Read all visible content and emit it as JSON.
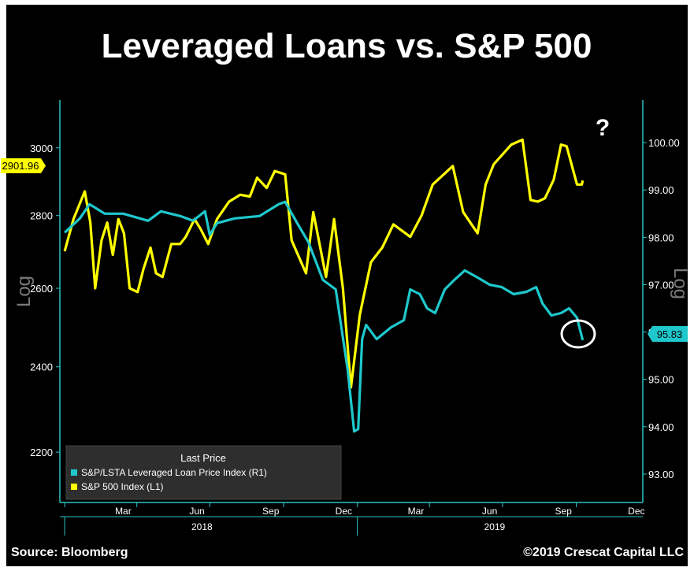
{
  "chart_data": {
    "type": "line",
    "title": "Leveraged Loans vs. S&P 500",
    "source": "Source: Bloomberg",
    "copyright": "©2019 Crescat Capital LLC",
    "left_axis_label": "Log",
    "right_axis_label": "Log",
    "left_ticks": [
      "2200",
      "2400",
      "2600",
      "2800",
      "3000"
    ],
    "right_ticks": [
      "93.00",
      "94.00",
      "95.00",
      "96.00",
      "97.00",
      "98.00",
      "99.00",
      "100.00"
    ],
    "x_month_ticks": [
      "Mar",
      "Jun",
      "Sep",
      "Dec",
      "Mar",
      "Jun",
      "Sep",
      "Dec"
    ],
    "x_year_ticks": [
      "2018",
      "2019"
    ],
    "left_ylim": [
      2090,
      3150
    ],
    "right_ylim": [
      92.4,
      100.9
    ],
    "legend": {
      "title": "Last Price",
      "entries": [
        "S&P/LSTA Leveraged Loan Price Index (R1)",
        "S&P 500 Index (L1)"
      ]
    },
    "last_values": {
      "left": "2901.96",
      "right": "95.83"
    },
    "annotation": "?",
    "colors": {
      "sp500": "#ffff00",
      "loan": "#1ec8cc",
      "background": "#000000",
      "axis": "#2ac4c4"
    },
    "series": [
      {
        "name": "S&P 500 Index (L1)",
        "axis": "left",
        "points": [
          [
            "2018-01-01",
            2700
          ],
          [
            "2018-01-12",
            2790
          ],
          [
            "2018-01-26",
            2870
          ],
          [
            "2018-02-02",
            2780
          ],
          [
            "2018-02-08",
            2600
          ],
          [
            "2018-02-16",
            2730
          ],
          [
            "2018-02-23",
            2780
          ],
          [
            "2018-03-02",
            2690
          ],
          [
            "2018-03-09",
            2790
          ],
          [
            "2018-03-16",
            2750
          ],
          [
            "2018-03-23",
            2600
          ],
          [
            "2018-04-02",
            2590
          ],
          [
            "2018-04-09",
            2650
          ],
          [
            "2018-04-18",
            2710
          ],
          [
            "2018-04-25",
            2640
          ],
          [
            "2018-05-03",
            2630
          ],
          [
            "2018-05-14",
            2720
          ],
          [
            "2018-05-25",
            2720
          ],
          [
            "2018-06-01",
            2740
          ],
          [
            "2018-06-12",
            2790
          ],
          [
            "2018-06-20",
            2760
          ],
          [
            "2018-06-29",
            2720
          ],
          [
            "2018-07-10",
            2790
          ],
          [
            "2018-07-25",
            2840
          ],
          [
            "2018-08-08",
            2860
          ],
          [
            "2018-08-20",
            2855
          ],
          [
            "2018-08-29",
            2910
          ],
          [
            "2018-09-10",
            2880
          ],
          [
            "2018-09-20",
            2930
          ],
          [
            "2018-10-03",
            2920
          ],
          [
            "2018-10-11",
            2730
          ],
          [
            "2018-10-29",
            2640
          ],
          [
            "2018-11-07",
            2810
          ],
          [
            "2018-11-23",
            2630
          ],
          [
            "2018-12-03",
            2790
          ],
          [
            "2018-12-14",
            2600
          ],
          [
            "2018-12-24",
            2350
          ],
          [
            "2019-01-04",
            2530
          ],
          [
            "2019-01-18",
            2670
          ],
          [
            "2019-02-01",
            2710
          ],
          [
            "2019-02-15",
            2775
          ],
          [
            "2019-03-08",
            2740
          ],
          [
            "2019-03-22",
            2800
          ],
          [
            "2019-04-05",
            2890
          ],
          [
            "2019-04-30",
            2945
          ],
          [
            "2019-05-13",
            2810
          ],
          [
            "2019-05-31",
            2750
          ],
          [
            "2019-06-10",
            2890
          ],
          [
            "2019-06-20",
            2950
          ],
          [
            "2019-07-12",
            3010
          ],
          [
            "2019-07-26",
            3025
          ],
          [
            "2019-08-05",
            2845
          ],
          [
            "2019-08-14",
            2840
          ],
          [
            "2019-08-23",
            2850
          ],
          [
            "2019-09-03",
            2905
          ],
          [
            "2019-09-12",
            3010
          ],
          [
            "2019-09-19",
            3005
          ],
          [
            "2019-10-02",
            2890
          ],
          [
            "2019-10-08",
            2890
          ],
          [
            "2019-10-09",
            2901.96
          ]
        ]
      },
      {
        "name": "S&P/LSTA Leveraged Loan Price Index (R1)",
        "axis": "right",
        "points": [
          [
            "2018-01-01",
            98.1
          ],
          [
            "2018-01-20",
            98.4
          ],
          [
            "2018-02-01",
            98.7
          ],
          [
            "2018-02-20",
            98.5
          ],
          [
            "2018-03-15",
            98.5
          ],
          [
            "2018-04-15",
            98.35
          ],
          [
            "2018-05-01",
            98.55
          ],
          [
            "2018-05-25",
            98.45
          ],
          [
            "2018-06-10",
            98.35
          ],
          [
            "2018-06-25",
            98.55
          ],
          [
            "2018-07-01",
            98.05
          ],
          [
            "2018-07-10",
            98.3
          ],
          [
            "2018-08-01",
            98.4
          ],
          [
            "2018-09-01",
            98.45
          ],
          [
            "2018-09-25",
            98.7
          ],
          [
            "2018-10-03",
            98.75
          ],
          [
            "2018-10-18",
            98.3
          ],
          [
            "2018-11-01",
            97.9
          ],
          [
            "2018-11-19",
            97.1
          ],
          [
            "2018-12-05",
            96.9
          ],
          [
            "2018-12-20",
            95.2
          ],
          [
            "2018-12-28",
            93.9
          ],
          [
            "2019-01-02",
            93.95
          ],
          [
            "2019-01-07",
            95.85
          ],
          [
            "2019-01-12",
            96.15
          ],
          [
            "2019-01-25",
            95.85
          ],
          [
            "2019-02-12",
            96.1
          ],
          [
            "2019-02-28",
            96.25
          ],
          [
            "2019-03-08",
            96.9
          ],
          [
            "2019-03-20",
            96.8
          ],
          [
            "2019-03-29",
            96.5
          ],
          [
            "2019-04-08",
            96.4
          ],
          [
            "2019-04-20",
            96.9
          ],
          [
            "2019-05-02",
            97.1
          ],
          [
            "2019-05-15",
            97.3
          ],
          [
            "2019-05-31",
            97.15
          ],
          [
            "2019-06-15",
            97.0
          ],
          [
            "2019-06-30",
            96.95
          ],
          [
            "2019-07-15",
            96.8
          ],
          [
            "2019-07-31",
            96.85
          ],
          [
            "2019-08-12",
            96.95
          ],
          [
            "2019-08-20",
            96.6
          ],
          [
            "2019-08-31",
            96.35
          ],
          [
            "2019-09-12",
            96.4
          ],
          [
            "2019-09-22",
            96.5
          ],
          [
            "2019-10-02",
            96.3
          ],
          [
            "2019-10-09",
            95.83
          ]
        ]
      }
    ]
  }
}
